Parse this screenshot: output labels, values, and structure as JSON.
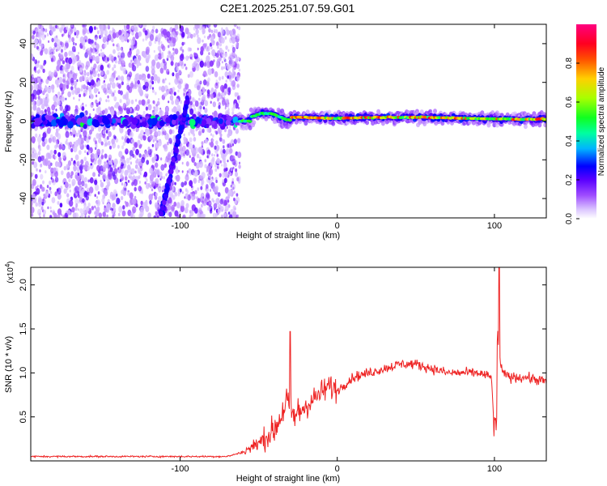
{
  "title": "C2E1.2025.251.07.59.G01",
  "chart_data": [
    {
      "type": "heatmap",
      "xlabel": "Height of straight line (km)",
      "ylabel": "Frequency (Hz)",
      "xlim": [
        -195,
        133
      ],
      "ylim": [
        -50,
        50
      ],
      "x_ticks": [
        -100,
        0,
        100
      ],
      "x_tick_labels": [
        "-100",
        "0",
        "100"
      ],
      "y_ticks": [
        -40,
        -20,
        0,
        20,
        40
      ],
      "y_tick_labels": [
        "-40",
        "-20",
        "0",
        "20",
        "40"
      ],
      "colorbar": {
        "label": "Normalized spectral amplitude",
        "range": [
          0,
          1
        ],
        "ticks": [
          0.0,
          0.2,
          0.4,
          0.6,
          0.8
        ],
        "tick_labels": [
          "0.0",
          "0.2",
          "0.4",
          "0.6",
          "0.8"
        ],
        "colors": [
          "#ffffff",
          "#b070ff",
          "#7a00ff",
          "#0000ff",
          "#00c8ff",
          "#00ff60",
          "#c8ff00",
          "#ffb000",
          "#ff0000",
          "#ff0080"
        ]
      },
      "features": {
        "noise_region_x": [
          -195,
          -62
        ],
        "band_center_hz": 0,
        "drift_line": {
          "x": [
            -112,
            -95
          ],
          "y": [
            -48,
            12
          ]
        },
        "signal_onset_x": -62,
        "strong_band_x": [
          -30,
          133
        ]
      }
    },
    {
      "type": "line",
      "xlabel": "Height of straight line (km)",
      "ylabel": "SNR (10 * v/v)",
      "y_multiplier": "(x10",
      "y_multiplier_exp": "4",
      "xlim": [
        -195,
        133
      ],
      "ylim": [
        0,
        2.2
      ],
      "x_ticks": [
        -100,
        0,
        100
      ],
      "x_tick_labels": [
        "-100",
        "0",
        "100"
      ],
      "y_ticks": [
        0.5,
        1.0,
        1.5,
        2.0
      ],
      "y_tick_labels": [
        "0.5",
        "1.0",
        "1.5",
        "2.0"
      ],
      "color": "#ee2222",
      "series": [
        {
          "x": [
            -195,
            -150,
            -100,
            -70,
            -60,
            -50,
            -40,
            -35,
            -32,
            -30,
            -27,
            -22,
            -15,
            -5,
            0,
            10,
            20,
            30,
            40,
            50,
            60,
            70,
            80,
            90,
            98,
            100,
            102,
            103,
            105,
            110,
            120,
            133
          ],
          "values": [
            0.05,
            0.05,
            0.05,
            0.05,
            0.1,
            0.2,
            0.35,
            0.55,
            0.7,
            0.55,
            0.5,
            0.6,
            0.7,
            0.85,
            0.8,
            0.95,
            1.0,
            1.05,
            1.1,
            1.1,
            1.05,
            1.0,
            1.0,
            1.0,
            0.95,
            0.4,
            1.5,
            1.2,
            1.0,
            0.95,
            0.95,
            0.9
          ]
        }
      ],
      "spikes": [
        {
          "x": -30,
          "y": 1.47
        },
        {
          "x": 101,
          "y": 1.62
        },
        {
          "x": 103,
          "y": 2.2
        }
      ]
    }
  ]
}
